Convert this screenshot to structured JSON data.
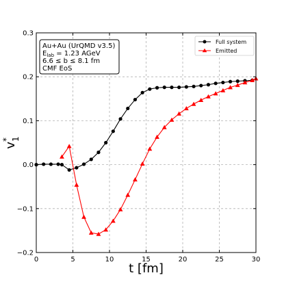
{
  "chart_data": {
    "type": "line",
    "xlabel": "t [fm]",
    "ylabel": "v",
    "ylabel_sup": "*",
    "ylabel_sub": "1",
    "xlim": [
      0,
      30
    ],
    "ylim": [
      -0.2,
      0.3
    ],
    "xticks": [
      0,
      5,
      10,
      15,
      20,
      25,
      30
    ],
    "yticks": [
      -0.2,
      -0.1,
      0.0,
      0.1,
      0.2,
      0.3
    ],
    "xtick_labels": [
      "0",
      "5",
      "10",
      "15",
      "20",
      "25",
      "30"
    ],
    "ytick_labels": [
      "−0.2",
      "−0.1",
      "0.0",
      "0.1",
      "0.2",
      "0.3"
    ],
    "grid": true,
    "legend_position": "top-right",
    "info_box": {
      "line1": "Au+Au (UrQMD v3.5)",
      "line2_main": "E",
      "line2_sub": "lab",
      "line2_rest": " = 1.23 AGeV",
      "line3": "6.6 ≤ b ≤ 8.1 fm",
      "line4": "CMF EoS"
    },
    "series": [
      {
        "name": "Full system",
        "color": "#000000",
        "marker": "circle",
        "x": [
          0,
          1,
          2,
          3,
          3.5,
          4.5,
          5.5,
          6.5,
          7.5,
          8.5,
          9.5,
          10.5,
          11.5,
          12.5,
          13.5,
          14.5,
          15.5,
          16.5,
          17.5,
          18.5,
          19.5,
          20.5,
          21.5,
          22.5,
          23.5,
          24.5,
          25.5,
          26.5,
          27.5,
          28.5,
          29.5
        ],
        "y": [
          0.0,
          0.001,
          0.001,
          0.001,
          0.0,
          -0.012,
          -0.007,
          0.001,
          0.012,
          0.028,
          0.05,
          0.076,
          0.104,
          0.128,
          0.148,
          0.164,
          0.172,
          0.175,
          0.176,
          0.176,
          0.176,
          0.177,
          0.178,
          0.18,
          0.182,
          0.185,
          0.187,
          0.189,
          0.19,
          0.191,
          0.192
        ]
      },
      {
        "name": "Emitted",
        "color": "#ff0000",
        "marker": "triangle",
        "x": [
          3.5,
          4.5,
          5.5,
          6.5,
          7.5,
          8.5,
          9.5,
          10.5,
          11.5,
          12.5,
          13.5,
          14.5,
          15.5,
          16.5,
          17.5,
          18.5,
          19.5,
          20.5,
          21.5,
          22.5,
          23.5,
          24.5,
          25.5,
          26.5,
          27.5,
          28.5,
          29.5,
          30
        ],
        "y": [
          0.018,
          0.042,
          -0.046,
          -0.119,
          -0.155,
          -0.158,
          -0.148,
          -0.128,
          -0.102,
          -0.069,
          -0.034,
          0.002,
          0.036,
          0.063,
          0.085,
          0.102,
          0.116,
          0.128,
          0.138,
          0.147,
          0.155,
          0.162,
          0.169,
          0.176,
          0.181,
          0.187,
          0.192,
          0.196
        ]
      }
    ]
  }
}
